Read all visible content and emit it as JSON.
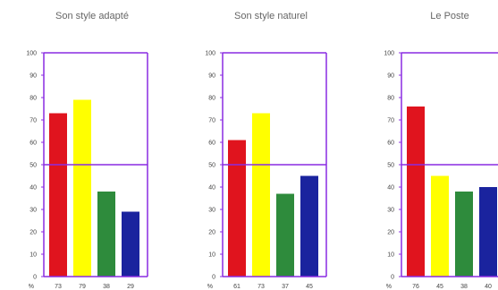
{
  "colors": {
    "frame": "#8a2be2",
    "red": "#e0141e",
    "yellow": "#ffff00",
    "green": "#2e8b3c",
    "blue": "#1a239e"
  },
  "chart_data": [
    {
      "type": "bar",
      "title": "Son style adapté",
      "values": [
        73,
        79,
        38,
        29
      ],
      "value_labels": [
        "73",
        "79",
        "38",
        "29"
      ],
      "colors": [
        "red",
        "yellow",
        "green",
        "blue"
      ],
      "ylim": [
        0,
        100
      ],
      "yticks": [
        "0",
        "10",
        "20",
        "30",
        "40",
        "50",
        "60",
        "70",
        "80",
        "90",
        "100"
      ],
      "unit": "%",
      "reference_line": 50
    },
    {
      "type": "bar",
      "title": "Son style naturel",
      "values": [
        61,
        73,
        37,
        45
      ],
      "value_labels": [
        "61",
        "73",
        "37",
        "45"
      ],
      "colors": [
        "red",
        "yellow",
        "green",
        "blue"
      ],
      "ylim": [
        0,
        100
      ],
      "yticks": [
        "0",
        "10",
        "20",
        "30",
        "40",
        "50",
        "60",
        "70",
        "80",
        "90",
        "100"
      ],
      "unit": "%",
      "reference_line": 50
    },
    {
      "type": "bar",
      "title": "Le Poste",
      "values": [
        76,
        45,
        38,
        40
      ],
      "value_labels": [
        "76",
        "45",
        "38",
        "40"
      ],
      "colors": [
        "red",
        "yellow",
        "green",
        "blue"
      ],
      "ylim": [
        0,
        100
      ],
      "yticks": [
        "0",
        "10",
        "20",
        "30",
        "40",
        "50",
        "60",
        "70",
        "80",
        "90",
        "100"
      ],
      "unit": "%",
      "reference_line": 50
    }
  ]
}
